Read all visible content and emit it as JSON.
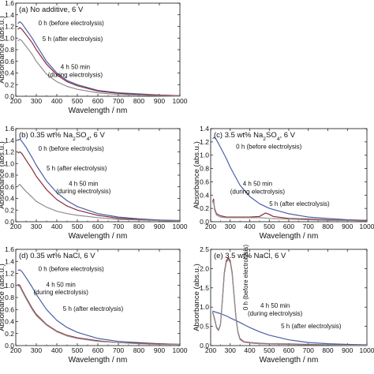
{
  "chart_data": [
    {
      "panel": "a",
      "type": "line",
      "title": "(a) No additive, 6 V",
      "xlabel": "Wavelength / nm",
      "ylabel": "Absorbance (abs.u.)",
      "xlim": [
        200,
        1000
      ],
      "ylim": [
        0,
        1.6
      ],
      "xticks": [
        200,
        300,
        400,
        500,
        600,
        700,
        800,
        900,
        1000
      ],
      "yticks": [
        0,
        0.2,
        0.4,
        0.6,
        0.8,
        1.0,
        1.2,
        1.4,
        1.6
      ],
      "series": [
        {
          "name": "0 h (before electrolysis)",
          "color": "#4a5fa8",
          "x": [
            210,
            220,
            230,
            250,
            280,
            300,
            350,
            400,
            450,
            500,
            600,
            700,
            800,
            900,
            1000
          ],
          "y": [
            1.25,
            1.28,
            1.25,
            1.15,
            1.0,
            0.88,
            0.6,
            0.4,
            0.27,
            0.2,
            0.1,
            0.06,
            0.04,
            0.02,
            0.01
          ]
        },
        {
          "name": "5 h (after electrolysis)",
          "color": "#8b2a35",
          "x": [
            210,
            220,
            230,
            250,
            280,
            300,
            350,
            400,
            450,
            500,
            600,
            700,
            800,
            900,
            1000
          ],
          "y": [
            1.15,
            1.18,
            1.15,
            1.06,
            0.92,
            0.8,
            0.55,
            0.37,
            0.25,
            0.18,
            0.09,
            0.05,
            0.03,
            0.02,
            0.01
          ]
        },
        {
          "name": "4 h 50 min (during electrolysis)",
          "color": "#8f8f8f",
          "x": [
            210,
            220,
            230,
            250,
            280,
            300,
            350,
            400,
            450,
            500,
            600,
            700,
            800,
            900,
            1000
          ],
          "y": [
            0.95,
            0.98,
            0.95,
            0.86,
            0.72,
            0.6,
            0.38,
            0.25,
            0.17,
            0.12,
            0.06,
            0.03,
            0.02,
            0.01,
            0.0
          ]
        }
      ],
      "labels": [
        {
          "text": "0 h (before electrolysis)",
          "x": 310,
          "y": 1.22,
          "anchor": "start"
        },
        {
          "text": "5 h (after electrolysis)",
          "x": 330,
          "y": 0.95,
          "anchor": "start"
        },
        {
          "text": "4 h 50 min",
          "x": 490,
          "y": 0.47,
          "anchor": "middle"
        },
        {
          "text": "(during electrolysis)",
          "x": 490,
          "y": 0.33,
          "anchor": "middle"
        }
      ]
    },
    {
      "panel": "b",
      "type": "line",
      "title": "(b) 0.35 wt% Na₂SO₄, 6 V",
      "xlabel": "Wavelength / nm",
      "ylabel": "Absorbance (abs.u.)",
      "xlim": [
        200,
        1000
      ],
      "ylim": [
        0,
        1.6
      ],
      "xticks": [
        200,
        300,
        400,
        500,
        600,
        700,
        800,
        900,
        1000
      ],
      "yticks": [
        0,
        0.2,
        0.4,
        0.6,
        0.8,
        1.0,
        1.2,
        1.4,
        1.6
      ],
      "series": [
        {
          "name": "0 h (before electrolysis)",
          "color": "#4a5fa8",
          "x": [
            210,
            220,
            230,
            250,
            280,
            300,
            350,
            400,
            450,
            500,
            600,
            700,
            800,
            900,
            1000
          ],
          "y": [
            1.4,
            1.42,
            1.38,
            1.28,
            1.1,
            0.97,
            0.7,
            0.5,
            0.36,
            0.26,
            0.14,
            0.08,
            0.05,
            0.03,
            0.02
          ]
        },
        {
          "name": "5 h (after electrolysis)",
          "color": "#8b2a35",
          "x": [
            210,
            220,
            230,
            250,
            280,
            300,
            350,
            400,
            450,
            500,
            600,
            700,
            800,
            900,
            1000
          ],
          "y": [
            1.18,
            1.2,
            1.17,
            1.06,
            0.9,
            0.78,
            0.55,
            0.38,
            0.27,
            0.2,
            0.11,
            0.06,
            0.04,
            0.02,
            0.01
          ]
        },
        {
          "name": "4 h 50 min (during electrolysis)",
          "color": "#8f8f8f",
          "x": [
            210,
            220,
            230,
            250,
            280,
            300,
            350,
            400,
            450,
            500,
            600,
            700,
            800,
            900,
            1000
          ],
          "y": [
            0.62,
            0.64,
            0.6,
            0.52,
            0.42,
            0.35,
            0.25,
            0.18,
            0.14,
            0.11,
            0.07,
            0.04,
            0.03,
            0.02,
            0.01
          ]
        }
      ],
      "labels": [
        {
          "text": "0 h (before electrolysis)",
          "x": 310,
          "y": 1.22,
          "anchor": "start"
        },
        {
          "text": "5 h (after electrolysis)",
          "x": 350,
          "y": 0.88,
          "anchor": "start"
        },
        {
          "text": "4 h 50 min",
          "x": 530,
          "y": 0.62,
          "anchor": "middle"
        },
        {
          "text": "(during electrolysis)",
          "x": 530,
          "y": 0.49,
          "anchor": "middle"
        }
      ]
    },
    {
      "panel": "c",
      "type": "line",
      "title": "(c) 3.5 wt% Na₂SO₄, 6 V",
      "xlabel": "Wavelength / nm",
      "ylabel": "Absorbance (abs.u.)",
      "xlim": [
        200,
        1000
      ],
      "ylim": [
        0,
        1.4
      ],
      "xticks": [
        200,
        300,
        400,
        500,
        600,
        700,
        800,
        900,
        1000
      ],
      "yticks": [
        0,
        0.2,
        0.4,
        0.6,
        0.8,
        1.0,
        1.2,
        1.4
      ],
      "series": [
        {
          "name": "0 h (before electrolysis)",
          "color": "#4a5fa8",
          "x": [
            210,
            220,
            230,
            250,
            280,
            300,
            350,
            400,
            450,
            500,
            600,
            700,
            800,
            900,
            1000
          ],
          "y": [
            1.25,
            1.27,
            1.23,
            1.12,
            0.95,
            0.82,
            0.55,
            0.38,
            0.27,
            0.2,
            0.12,
            0.07,
            0.05,
            0.03,
            0.02
          ]
        },
        {
          "name": "5 h (after electrolysis)",
          "color": "#8b2a35",
          "x": [
            210,
            215,
            220,
            230,
            250,
            280,
            300,
            350,
            400,
            450,
            480,
            500,
            520,
            600,
            700,
            800,
            900,
            1000
          ],
          "y": [
            0.3,
            0.34,
            0.2,
            0.12,
            0.09,
            0.07,
            0.07,
            0.07,
            0.07,
            0.08,
            0.13,
            0.11,
            0.08,
            0.05,
            0.04,
            0.03,
            0.02,
            0.02
          ]
        },
        {
          "name": "4 h 50 min (during electrolysis)",
          "color": "#8f8f8f",
          "x": [
            210,
            215,
            220,
            230,
            250,
            280,
            300,
            350,
            400,
            450,
            500,
            600,
            700,
            800,
            900,
            1000
          ],
          "y": [
            0.28,
            0.31,
            0.18,
            0.1,
            0.07,
            0.06,
            0.06,
            0.06,
            0.06,
            0.06,
            0.05,
            0.04,
            0.03,
            0.02,
            0.02,
            0.01
          ]
        }
      ],
      "labels": [
        {
          "text": "0 h (before electrolysis)",
          "x": 330,
          "y": 1.1,
          "anchor": "start"
        },
        {
          "text": "4 h 50 min",
          "x": 440,
          "y": 0.54,
          "anchor": "middle"
        },
        {
          "text": "(during electrolysis)",
          "x": 440,
          "y": 0.42,
          "anchor": "middle"
        },
        {
          "text": "5 h (after electrolysis)",
          "x": 500,
          "y": 0.24,
          "anchor": "start"
        }
      ]
    },
    {
      "panel": "d",
      "type": "line",
      "title": "(d) 0.35 wt% NaCl, 6 V",
      "xlabel": "Wavelength / nm",
      "ylabel": "Absorbance (abs.u.)",
      "xlim": [
        200,
        1000
      ],
      "ylim": [
        0,
        1.6
      ],
      "xticks": [
        200,
        300,
        400,
        500,
        600,
        700,
        800,
        900,
        1000
      ],
      "yticks": [
        0,
        0.2,
        0.4,
        0.6,
        0.8,
        1.0,
        1.2,
        1.4,
        1.6
      ],
      "series": [
        {
          "name": "0 h (before electrolysis)",
          "color": "#4a5fa8",
          "x": [
            210,
            220,
            230,
            250,
            280,
            300,
            350,
            400,
            450,
            500,
            600,
            700,
            800,
            900,
            1000
          ],
          "y": [
            1.25,
            1.26,
            1.23,
            1.13,
            0.97,
            0.85,
            0.6,
            0.42,
            0.3,
            0.22,
            0.12,
            0.07,
            0.05,
            0.03,
            0.02
          ]
        },
        {
          "name": "5 h (after electrolysis)",
          "color": "#8b2a35",
          "x": [
            210,
            220,
            230,
            250,
            280,
            300,
            350,
            400,
            450,
            500,
            600,
            700,
            800,
            900,
            1000
          ],
          "y": [
            1.02,
            1.0,
            0.93,
            0.8,
            0.62,
            0.52,
            0.35,
            0.24,
            0.17,
            0.13,
            0.08,
            0.05,
            0.04,
            0.03,
            0.02
          ]
        },
        {
          "name": "4 h 50 min (during electrolysis)",
          "color": "#8f8f8f",
          "x": [
            210,
            220,
            230,
            250,
            280,
            300,
            350,
            400,
            450,
            500,
            600,
            700,
            800,
            900,
            1000
          ],
          "y": [
            1.0,
            0.98,
            0.91,
            0.78,
            0.6,
            0.5,
            0.34,
            0.23,
            0.16,
            0.12,
            0.07,
            0.05,
            0.03,
            0.02,
            0.02
          ]
        }
      ],
      "labels": [
        {
          "text": "0 h (before electrolysis)",
          "x": 310,
          "y": 1.24,
          "anchor": "start"
        },
        {
          "text": "4 h 50 min",
          "x": 420,
          "y": 0.98,
          "anchor": "middle"
        },
        {
          "text": "(during electrolysis)",
          "x": 420,
          "y": 0.85,
          "anchor": "middle"
        },
        {
          "text": "5 h (after electrolysis)",
          "x": 430,
          "y": 0.58,
          "anchor": "start"
        }
      ]
    },
    {
      "panel": "e",
      "type": "line",
      "title": "(e) 3.5 wt% NaCl, 6 V",
      "xlabel": "Wavelength / nm",
      "ylabel": "Absorbance (abs.u.)",
      "xlim": [
        200,
        1000
      ],
      "ylim": [
        0,
        2.5
      ],
      "xticks": [
        200,
        300,
        400,
        500,
        600,
        700,
        800,
        900,
        1000
      ],
      "yticks": [
        0,
        0.5,
        1.0,
        1.5,
        2.0,
        2.5
      ],
      "series": [
        {
          "name": "0 h (before electrolysis)",
          "color": "#4a5fa8",
          "x": [
            210,
            220,
            230,
            250,
            280,
            300,
            350,
            400,
            450,
            500,
            600,
            700,
            800,
            900,
            1000
          ],
          "y": [
            0.9,
            0.88,
            0.86,
            0.83,
            0.77,
            0.72,
            0.6,
            0.47,
            0.36,
            0.27,
            0.15,
            0.08,
            0.05,
            0.03,
            0.02
          ]
        },
        {
          "name": "5 h (after electrolysis)",
          "color": "#8b2a35",
          "x": [
            210,
            220,
            230,
            240,
            250,
            260,
            270,
            280,
            290,
            300,
            310,
            320,
            330,
            340,
            350,
            370,
            400,
            450,
            500,
            600,
            700,
            800,
            900,
            1000
          ],
          "y": [
            0.88,
            0.7,
            0.48,
            0.4,
            0.55,
            1.2,
            1.9,
            2.2,
            2.28,
            2.2,
            1.9,
            1.3,
            0.7,
            0.35,
            0.18,
            0.1,
            0.08,
            0.06,
            0.05,
            0.04,
            0.03,
            0.02,
            0.02,
            0.01
          ]
        },
        {
          "name": "4 h 50 min (during electrolysis)",
          "color": "#8f8f8f",
          "x": [
            210,
            220,
            230,
            240,
            250,
            260,
            270,
            280,
            290,
            300,
            310,
            320,
            330,
            340,
            350,
            370,
            400,
            450,
            500,
            600,
            700,
            800,
            900,
            1000
          ],
          "y": [
            0.86,
            0.68,
            0.46,
            0.39,
            0.53,
            1.17,
            1.86,
            2.16,
            2.24,
            2.16,
            1.86,
            1.27,
            0.68,
            0.33,
            0.16,
            0.09,
            0.07,
            0.05,
            0.04,
            0.03,
            0.02,
            0.02,
            0.01,
            0.01
          ]
        }
      ],
      "labels": [
        {
          "text": "0 h (before electrolysis)",
          "x": 390,
          "y": 0.92,
          "anchor": "start",
          "rotate": -90
        },
        {
          "text": "4 h 50 min",
          "x": 530,
          "y": 0.98,
          "anchor": "middle"
        },
        {
          "text": "(during electrolysis)",
          "x": 530,
          "y": 0.78,
          "anchor": "middle"
        },
        {
          "text": "5 h (after electrolysis)",
          "x": 560,
          "y": 0.45,
          "anchor": "start"
        }
      ]
    }
  ]
}
